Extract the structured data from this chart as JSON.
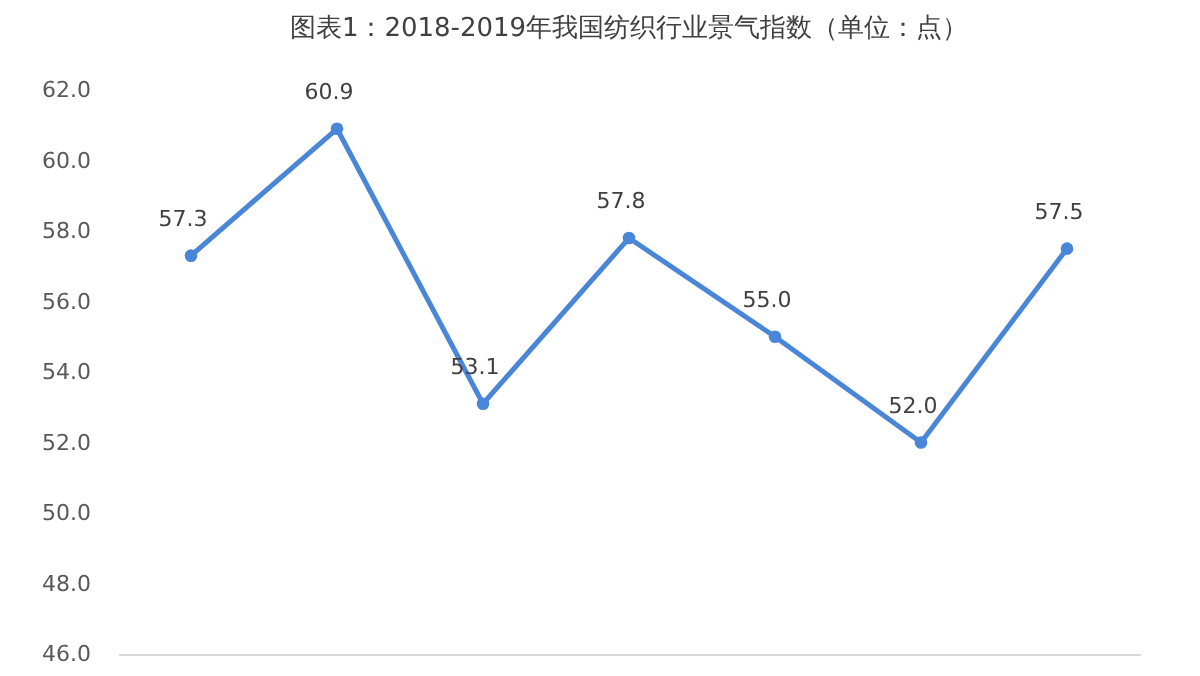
{
  "chart_data": {
    "type": "line",
    "title": "图表1：2018-2019年我国纺织行业景气指数（单位：点）",
    "categories": [
      null,
      null,
      null,
      null,
      null,
      null,
      null
    ],
    "series": [
      {
        "color": "#4a86d8",
        "values": [
          57.3,
          60.9,
          53.1,
          57.8,
          55.0,
          52.0,
          57.5
        ],
        "value_labels": [
          "57.3",
          "60.9",
          "53.1",
          "57.8",
          "55.0",
          "52.0",
          "57.5"
        ]
      }
    ],
    "ylim": [
      46,
      62
    ],
    "yticks": [
      {
        "value": 46,
        "label": "46.0"
      },
      {
        "value": 48,
        "label": "48.0"
      },
      {
        "value": 50,
        "label": "50.0"
      },
      {
        "value": 52,
        "label": "52.0"
      },
      {
        "value": 54,
        "label": "54.0"
      },
      {
        "value": 56,
        "label": "56.0"
      },
      {
        "value": 58,
        "label": "58.0"
      },
      {
        "value": 60,
        "label": "60.0"
      },
      {
        "value": 62,
        "label": "62.0"
      }
    ],
    "tick_labels": "y",
    "grid": false,
    "marker": "circle",
    "line_style": "solid",
    "legend": false
  }
}
